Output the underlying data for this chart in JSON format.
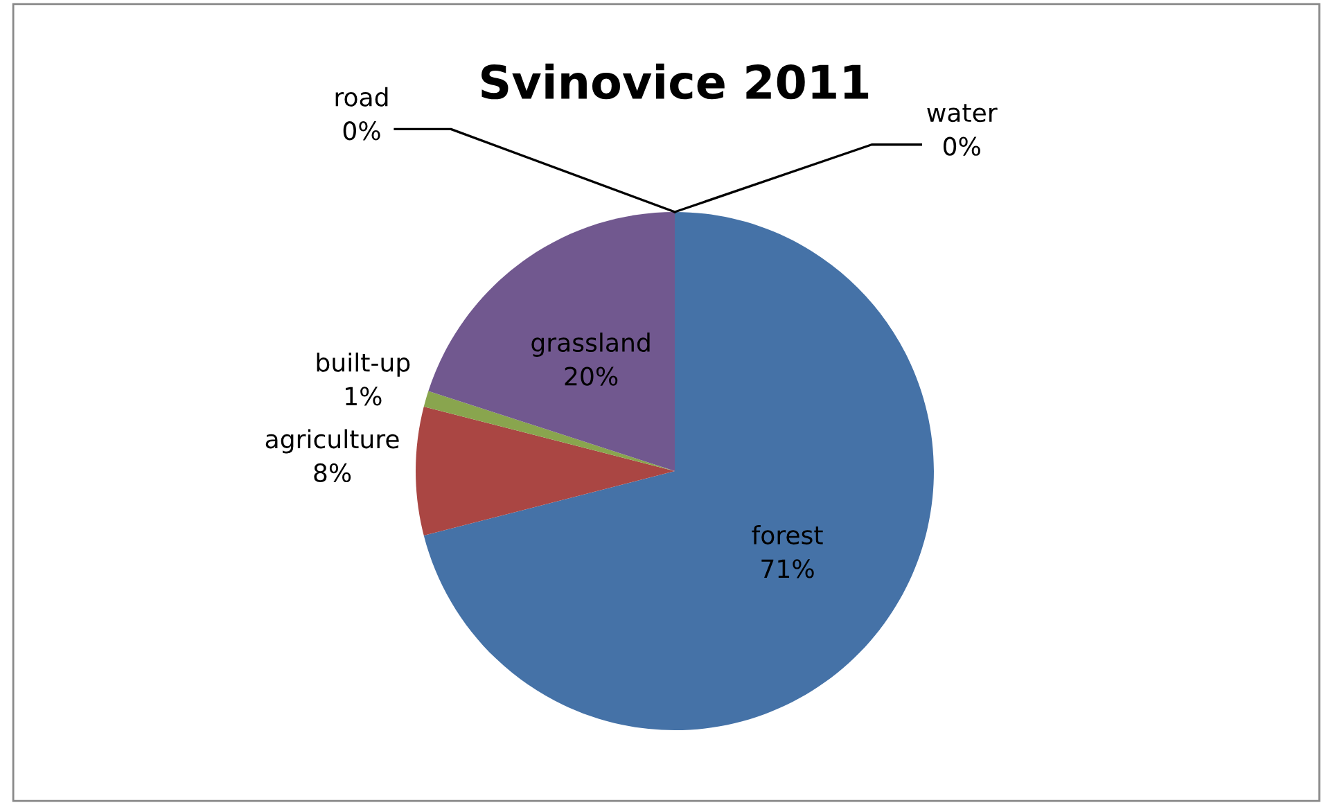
{
  "chart_data": {
    "type": "pie",
    "title": "Svinovice 2011",
    "categories": [
      "forest",
      "agriculture",
      "built-up",
      "grassland",
      "road",
      "water"
    ],
    "values": [
      71,
      8,
      1,
      20,
      0,
      0
    ],
    "colors": [
      "#4572a7",
      "#aa4643",
      "#89a54e",
      "#71588f",
      "#4198af",
      "#db843d"
    ],
    "value_labels": [
      "71%",
      "8%",
      "1%",
      "20%",
      "0%",
      "0%"
    ]
  }
}
